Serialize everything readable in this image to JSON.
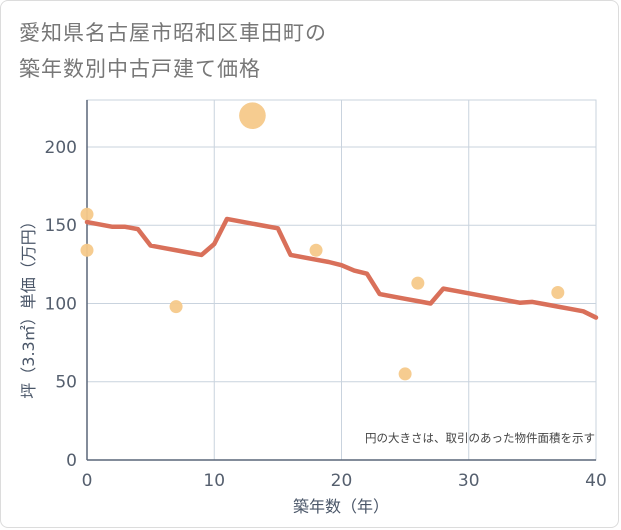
{
  "title_line1": "愛知県名古屋市昭和区車田町の",
  "title_line2": "築年数別中古戸建て価格",
  "chart_data": {
    "type": "scatter+line",
    "title": "愛知県名古屋市昭和区車田町の築年数別中古戸建て価格",
    "xlabel": "築年数（年）",
    "ylabel": "坪（3.3㎡）単価（万円）",
    "xlim": [
      0,
      40
    ],
    "ylim": [
      0,
      230
    ],
    "xticks": [
      0,
      10,
      20,
      30,
      40
    ],
    "yticks": [
      0,
      50,
      100,
      150,
      200
    ],
    "grid": true,
    "note": "円の大きさは、取引のあった物件面積を示す",
    "line_color": "#d9705a",
    "bubble_color": "#f5c98a",
    "trend": {
      "x": [
        0,
        1,
        2,
        3,
        4,
        5,
        6,
        7,
        8,
        9,
        10,
        11,
        12,
        13,
        14,
        15,
        16,
        17,
        18,
        19,
        20,
        21,
        22,
        23,
        24,
        25,
        26,
        27,
        28,
        29,
        30,
        31,
        32,
        33,
        34,
        35,
        36,
        37,
        38,
        39,
        40
      ],
      "y": [
        152,
        150.5,
        149,
        149,
        147.5,
        137,
        135.5,
        134,
        132.5,
        131,
        138,
        154,
        152.5,
        151,
        149.5,
        148,
        131,
        129.5,
        128,
        126.5,
        124.5,
        121,
        119,
        106,
        104.5,
        103,
        101.5,
        100,
        109.5,
        108,
        106.5,
        105,
        103.5,
        102,
        100.5,
        101,
        99.5,
        98,
        96.5,
        95,
        91
      ]
    },
    "bubbles": [
      {
        "x": 0,
        "y": 157,
        "size": 1
      },
      {
        "x": 0,
        "y": 134,
        "size": 1
      },
      {
        "x": 7,
        "y": 98,
        "size": 1
      },
      {
        "x": 13,
        "y": 220,
        "size": 4.2
      },
      {
        "x": 18,
        "y": 134,
        "size": 1
      },
      {
        "x": 25,
        "y": 55,
        "size": 1
      },
      {
        "x": 26,
        "y": 113,
        "size": 1
      },
      {
        "x": 37,
        "y": 107,
        "size": 1
      }
    ]
  }
}
